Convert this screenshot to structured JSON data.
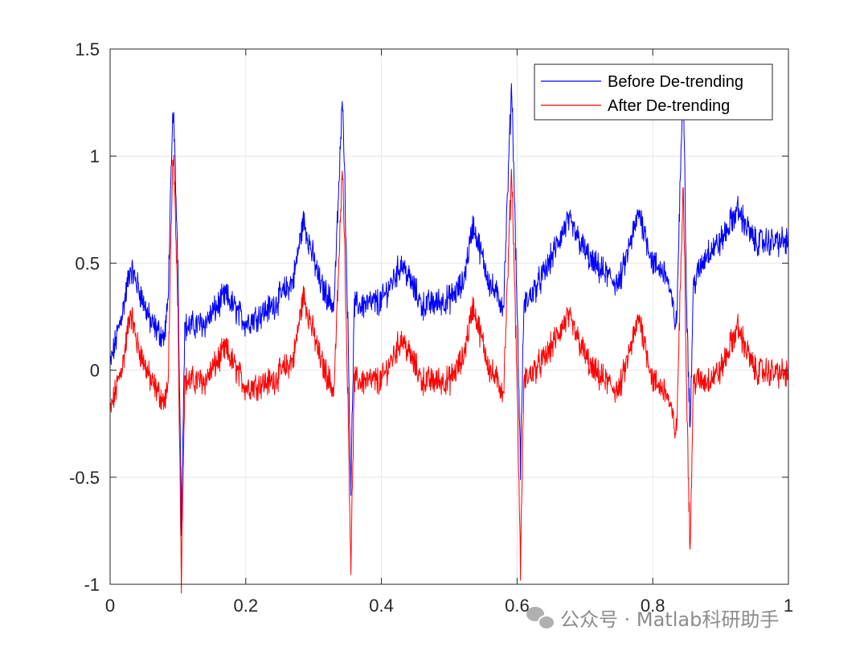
{
  "chart_data": {
    "type": "line",
    "title": "",
    "xlabel": "",
    "ylabel": "",
    "xlim": [
      0,
      1
    ],
    "ylim": [
      -1,
      1.5
    ],
    "xticks": [
      "0",
      "0.2",
      "0.4",
      "0.6",
      "0.8",
      "1"
    ],
    "yticks": [
      "-1",
      "-0.5",
      "0",
      "0.5",
      "1",
      "1.5"
    ],
    "grid": true,
    "legend_position": "top-right",
    "series": [
      {
        "name": "Before De-trending",
        "color": "#0000ff",
        "x": [
          0,
          0.02,
          0.03,
          0.04,
          0.06,
          0.08,
          0.085,
          0.093,
          0.1,
          0.105,
          0.11,
          0.14,
          0.17,
          0.2,
          0.24,
          0.27,
          0.285,
          0.31,
          0.33,
          0.343,
          0.35,
          0.355,
          0.36,
          0.4,
          0.43,
          0.46,
          0.5,
          0.52,
          0.535,
          0.56,
          0.58,
          0.592,
          0.6,
          0.605,
          0.61,
          0.64,
          0.675,
          0.71,
          0.75,
          0.78,
          0.8,
          0.82,
          0.835,
          0.845,
          0.85,
          0.855,
          0.86,
          0.88,
          0.9,
          0.925,
          0.95,
          1.0
        ],
        "y": [
          0.02,
          0.3,
          0.48,
          0.4,
          0.22,
          0.15,
          0.3,
          1.25,
          0.5,
          -0.7,
          0.2,
          0.22,
          0.35,
          0.22,
          0.3,
          0.42,
          0.7,
          0.4,
          0.3,
          1.3,
          0.3,
          -0.55,
          0.3,
          0.32,
          0.5,
          0.3,
          0.33,
          0.4,
          0.68,
          0.4,
          0.3,
          1.35,
          0.3,
          -0.45,
          0.3,
          0.45,
          0.7,
          0.5,
          0.4,
          0.74,
          0.5,
          0.45,
          0.2,
          1.42,
          0.3,
          -0.28,
          0.4,
          0.55,
          0.6,
          0.75,
          0.6,
          0.6
        ]
      },
      {
        "name": "After De-trending",
        "color": "#ff0000",
        "x": [
          0,
          0.02,
          0.03,
          0.04,
          0.06,
          0.08,
          0.085,
          0.093,
          0.1,
          0.105,
          0.11,
          0.14,
          0.17,
          0.2,
          0.24,
          0.27,
          0.285,
          0.31,
          0.33,
          0.343,
          0.35,
          0.355,
          0.36,
          0.4,
          0.43,
          0.46,
          0.5,
          0.52,
          0.535,
          0.56,
          0.58,
          0.592,
          0.6,
          0.605,
          0.61,
          0.64,
          0.675,
          0.71,
          0.75,
          0.78,
          0.8,
          0.82,
          0.835,
          0.845,
          0.85,
          0.855,
          0.86,
          0.88,
          0.9,
          0.925,
          0.95,
          1.0
        ],
        "y": [
          -0.2,
          0.05,
          0.28,
          0.12,
          -0.05,
          -0.15,
          -0.1,
          1.05,
          0.3,
          -0.97,
          -0.05,
          -0.05,
          0.1,
          -0.08,
          -0.05,
          0.05,
          0.35,
          0.05,
          -0.1,
          0.98,
          -0.05,
          -0.92,
          -0.05,
          -0.05,
          0.15,
          -0.05,
          -0.05,
          0.05,
          0.3,
          0.0,
          -0.1,
          0.95,
          -0.05,
          -0.92,
          -0.05,
          0.05,
          0.25,
          0.0,
          -0.1,
          0.25,
          -0.05,
          -0.1,
          -0.3,
          0.9,
          -0.1,
          -0.85,
          -0.05,
          -0.05,
          0.0,
          0.2,
          0.0,
          -0.02
        ]
      }
    ]
  },
  "watermark": {
    "text": "公众号 · Matlab科研助手",
    "icon": "wechat-icon"
  }
}
